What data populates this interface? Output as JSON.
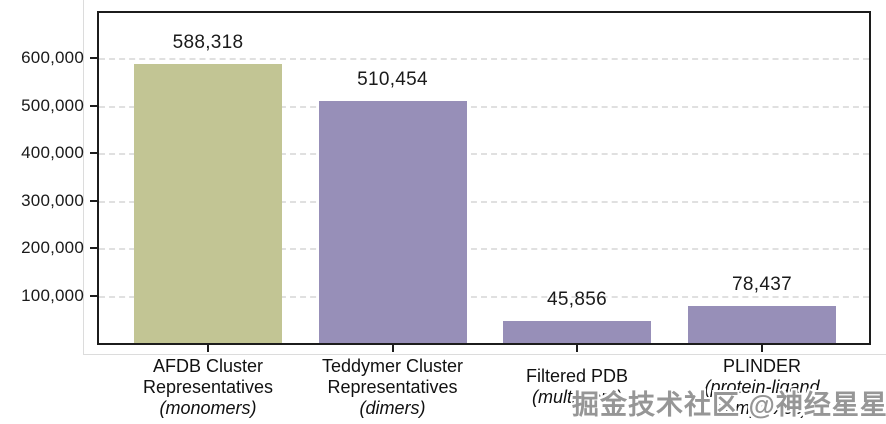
{
  "watermark": {
    "text": "掘金技术社区 @神经星星",
    "color": "#969696"
  },
  "chart_data": {
    "type": "bar",
    "title": "",
    "xlabel": "",
    "ylabel": "",
    "categories": [
      "AFDB Cluster Representatives (monomers)",
      "Teddymer Cluster Representatives (dimers)",
      "Filtered PDB (multimers)",
      "PLINDER (protein-ligand complexes)"
    ],
    "values": [
      588318,
      510454,
      45856,
      78437
    ],
    "value_labels": [
      "588,318",
      "510,454",
      "45,856",
      "78,437"
    ],
    "colors": [
      "#c2c594",
      "#978fb8",
      "#978fb8",
      "#978fb8"
    ],
    "ylim": [
      0,
      700000
    ],
    "grid": "horizontal dashed",
    "legend": "none",
    "frame_color": "#1c1c1c",
    "yticks": [
      {
        "label": "600,000",
        "value": 600000
      },
      {
        "label": "500,000",
        "value": 500000
      },
      {
        "label": "400,000",
        "value": 400000
      },
      {
        "label": "300,000",
        "value": 300000
      },
      {
        "label": "200,000",
        "value": 200000
      },
      {
        "label": "100,000",
        "value": 100000
      }
    ],
    "x_tick_labels": [
      {
        "lines": [
          {
            "text": "AFDB Cluster",
            "italic": false
          },
          {
            "text": "Representatives",
            "italic": false
          },
          {
            "text": "(monomers)",
            "italic": true
          }
        ]
      },
      {
        "lines": [
          {
            "text": "Teddymer Cluster",
            "italic": false
          },
          {
            "text": "Representatives",
            "italic": false
          },
          {
            "text": "(dimers)",
            "italic": true
          }
        ]
      },
      {
        "lines": [
          {
            "text": "Filtered PDB",
            "italic": false
          },
          {
            "text": "(multimers)",
            "italic": true
          }
        ]
      },
      {
        "lines": [
          {
            "text": "PLINDER",
            "italic": false
          },
          {
            "text": "(protein-ligand",
            "italic": true
          },
          {
            "text": "complexes)",
            "italic": true
          }
        ]
      }
    ]
  }
}
